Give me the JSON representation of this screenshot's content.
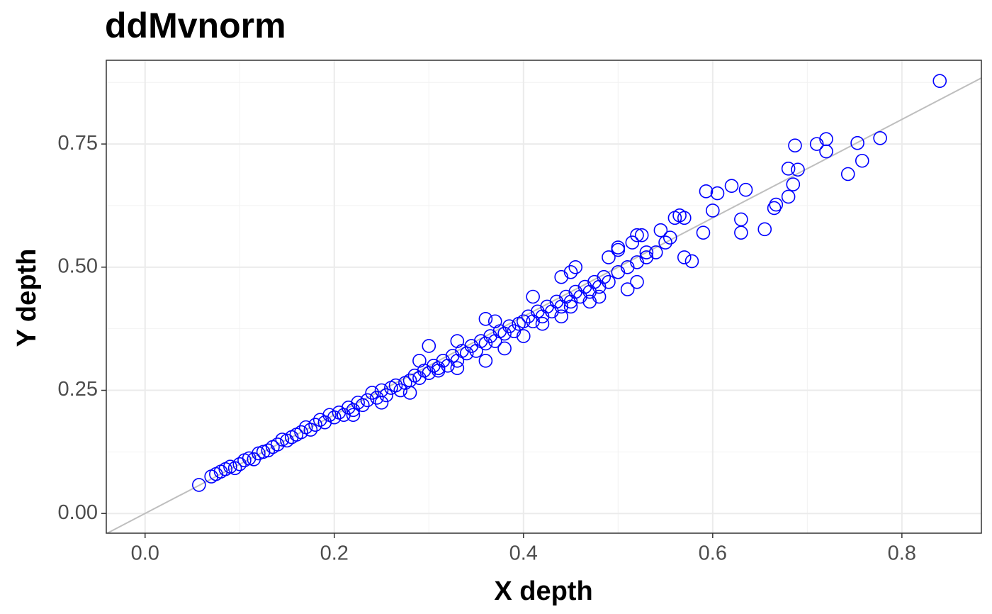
{
  "chart_data": {
    "type": "scatter",
    "title": "ddMvnorm",
    "x_label": "X depth",
    "y_label": "Y depth",
    "color": "#0000ff",
    "xlim": [
      -0.041,
      0.884
    ],
    "ylim": [
      -0.04,
      0.92
    ],
    "xticks": [
      {
        "value": 0,
        "label": "0.0"
      },
      0.2,
      0.4,
      0.6,
      0.8
    ],
    "yticks": [
      {
        "value": 0,
        "label": "0.00"
      },
      0.25,
      {
        "value": 0.5,
        "label": "0.50"
      },
      0.75
    ],
    "x_minor_ticks": [
      0.1,
      0.3,
      0.5,
      0.7
    ],
    "y_minor_ticks": [
      0.125,
      0.375,
      0.625,
      0.875
    ],
    "grid": true,
    "reference_line": {
      "slope": 1,
      "intercept": 0,
      "color": "#bebebe"
    },
    "x": [
      0.057,
      0.84,
      0.777,
      0.72,
      0.71,
      0.687,
      0.72,
      0.753,
      0.758,
      0.743,
      0.69,
      0.68,
      0.685,
      0.68,
      0.665,
      0.667,
      0.655,
      0.63,
      0.63,
      0.635,
      0.62,
      0.605,
      0.593,
      0.6,
      0.578,
      0.57,
      0.59,
      0.56,
      0.57,
      0.565,
      0.52,
      0.51,
      0.52,
      0.53,
      0.5,
      0.07,
      0.075,
      0.08,
      0.085,
      0.09,
      0.095,
      0.1,
      0.105,
      0.11,
      0.115,
      0.12,
      0.125,
      0.13,
      0.135,
      0.14,
      0.145,
      0.15,
      0.155,
      0.16,
      0.165,
      0.17,
      0.175,
      0.18,
      0.185,
      0.19,
      0.195,
      0.2,
      0.205,
      0.21,
      0.215,
      0.22,
      0.225,
      0.23,
      0.235,
      0.24,
      0.245,
      0.25,
      0.255,
      0.26,
      0.265,
      0.27,
      0.275,
      0.28,
      0.285,
      0.29,
      0.295,
      0.3,
      0.305,
      0.31,
      0.315,
      0.32,
      0.325,
      0.33,
      0.335,
      0.34,
      0.345,
      0.35,
      0.355,
      0.36,
      0.365,
      0.37,
      0.375,
      0.38,
      0.385,
      0.39,
      0.395,
      0.4,
      0.405,
      0.41,
      0.415,
      0.42,
      0.425,
      0.43,
      0.435,
      0.44,
      0.445,
      0.45,
      0.455,
      0.46,
      0.465,
      0.47,
      0.475,
      0.48,
      0.485,
      0.49,
      0.5,
      0.51,
      0.52,
      0.53,
      0.54,
      0.55,
      0.22,
      0.25,
      0.28,
      0.31,
      0.33,
      0.36,
      0.38,
      0.4,
      0.42,
      0.44,
      0.45,
      0.47,
      0.48,
      0.29,
      0.33,
      0.37,
      0.41,
      0.45,
      0.455,
      0.49,
      0.5,
      0.515,
      0.525,
      0.545,
      0.555,
      0.3,
      0.36,
      0.44
    ],
    "y": [
      0.058,
      0.878,
      0.762,
      0.76,
      0.75,
      0.747,
      0.735,
      0.752,
      0.716,
      0.689,
      0.698,
      0.7,
      0.668,
      0.643,
      0.62,
      0.627,
      0.577,
      0.57,
      0.597,
      0.657,
      0.665,
      0.65,
      0.654,
      0.615,
      0.512,
      0.52,
      0.57,
      0.6,
      0.6,
      0.605,
      0.47,
      0.455,
      0.565,
      0.52,
      0.54,
      0.075,
      0.08,
      0.085,
      0.09,
      0.095,
      0.092,
      0.1,
      0.108,
      0.112,
      0.11,
      0.122,
      0.125,
      0.128,
      0.135,
      0.14,
      0.15,
      0.148,
      0.155,
      0.16,
      0.165,
      0.175,
      0.17,
      0.18,
      0.19,
      0.185,
      0.2,
      0.195,
      0.205,
      0.2,
      0.215,
      0.21,
      0.225,
      0.22,
      0.23,
      0.245,
      0.235,
      0.25,
      0.24,
      0.255,
      0.26,
      0.25,
      0.265,
      0.27,
      0.28,
      0.275,
      0.29,
      0.285,
      0.3,
      0.295,
      0.31,
      0.3,
      0.32,
      0.31,
      0.33,
      0.325,
      0.34,
      0.33,
      0.35,
      0.345,
      0.36,
      0.35,
      0.37,
      0.365,
      0.38,
      0.37,
      0.385,
      0.39,
      0.4,
      0.39,
      0.41,
      0.4,
      0.42,
      0.41,
      0.43,
      0.42,
      0.44,
      0.43,
      0.45,
      0.44,
      0.46,
      0.45,
      0.47,
      0.46,
      0.48,
      0.47,
      0.49,
      0.5,
      0.51,
      0.53,
      0.53,
      0.55,
      0.2,
      0.225,
      0.245,
      0.29,
      0.295,
      0.31,
      0.335,
      0.36,
      0.385,
      0.4,
      0.42,
      0.43,
      0.44,
      0.31,
      0.35,
      0.39,
      0.44,
      0.49,
      0.5,
      0.52,
      0.535,
      0.55,
      0.565,
      0.575,
      0.56,
      0.34,
      0.395,
      0.48
    ]
  }
}
